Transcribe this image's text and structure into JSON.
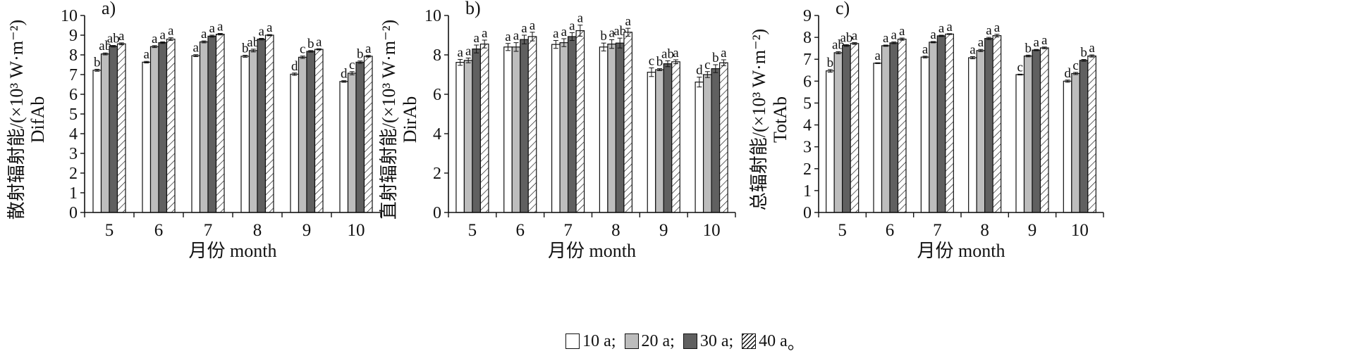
{
  "legend": {
    "items": [
      {
        "label": "10 a",
        "sep": ";",
        "pattern": "white"
      },
      {
        "label": "20 a",
        "sep": ";",
        "pattern": "lightgray"
      },
      {
        "label": "30 a",
        "sep": ";",
        "pattern": "darkgray"
      },
      {
        "label": "40 a",
        "sep": "。",
        "pattern": "hatch"
      }
    ]
  },
  "colors": {
    "white": "#ffffff",
    "lightgray": "#bdbdbd",
    "darkgray": "#606060",
    "hatch": "#ffffff",
    "ink": "#111111"
  },
  "chart_data": [
    {
      "type": "bar",
      "panel_label": "a)",
      "ylabel_lines": [
        "散射辐射能/(×10³ W·m⁻²)",
        "DifAb"
      ],
      "xlabel": "月份 month",
      "categories": [
        "5",
        "6",
        "7",
        "8",
        "9",
        "10"
      ],
      "ylim": [
        0,
        10
      ],
      "yticks": [
        0,
        1,
        2,
        3,
        4,
        5,
        6,
        7,
        8,
        9,
        10
      ],
      "series": [
        {
          "name": "10 a",
          "values": [
            7.22,
            7.63,
            7.96,
            7.93,
            7.02,
            6.65
          ],
          "errors": [
            0.05,
            0.04,
            0.05,
            0.05,
            0.06,
            0.04
          ],
          "letters": [
            "b",
            "a",
            "a",
            "b",
            "d",
            "d"
          ]
        },
        {
          "name": "20 a",
          "values": [
            8.05,
            8.42,
            8.66,
            8.22,
            7.88,
            7.07
          ],
          "errors": [
            0.05,
            0.05,
            0.05,
            0.07,
            0.06,
            0.08
          ],
          "letters": [
            "ab",
            "a",
            "a",
            "ab",
            "c",
            "c"
          ]
        },
        {
          "name": "30 a",
          "values": [
            8.44,
            8.62,
            8.95,
            8.8,
            8.18,
            7.63
          ],
          "errors": [
            0.04,
            0.04,
            0.05,
            0.04,
            0.04,
            0.06
          ],
          "letters": [
            "ab",
            "a",
            "a",
            "a",
            "b",
            "b"
          ]
        },
        {
          "name": "40 a",
          "values": [
            8.56,
            8.8,
            9.05,
            9.0,
            8.28,
            7.93
          ],
          "errors": [
            0.05,
            0.07,
            0.04,
            0.03,
            0.03,
            0.04
          ],
          "letters": [
            "a",
            "a",
            "a",
            "a",
            "a",
            "a"
          ]
        }
      ]
    },
    {
      "type": "bar",
      "panel_label": "b)",
      "ylabel_lines": [
        "直射辐射能/(×10³ W·m⁻²)",
        "DirAb"
      ],
      "xlabel": "月份 month",
      "categories": [
        "5",
        "6",
        "7",
        "8",
        "9",
        "10"
      ],
      "ylim": [
        0,
        10
      ],
      "yticks": [
        0,
        2,
        4,
        6,
        8,
        10
      ],
      "series": [
        {
          "name": "10 a",
          "values": [
            7.62,
            8.4,
            8.53,
            8.4,
            7.12,
            6.62
          ],
          "errors": [
            0.15,
            0.18,
            0.2,
            0.2,
            0.22,
            0.25
          ],
          "letters": [
            "a",
            "a",
            "a",
            "b",
            "c",
            "d"
          ]
        },
        {
          "name": "20 a",
          "values": [
            7.72,
            8.4,
            8.62,
            8.55,
            7.25,
            7.0
          ],
          "errors": [
            0.12,
            0.22,
            0.2,
            0.22,
            0.05,
            0.15
          ],
          "letters": [
            "a",
            "a",
            "a",
            "a",
            "b",
            "c"
          ]
        },
        {
          "name": "30 a",
          "values": [
            8.3,
            8.78,
            8.93,
            8.6,
            7.55,
            7.3
          ],
          "errors": [
            0.2,
            0.22,
            0.2,
            0.25,
            0.15,
            0.2
          ],
          "letters": [
            "a",
            "a",
            "a",
            "ab",
            "ab",
            "b"
          ]
        },
        {
          "name": "40 a",
          "values": [
            8.55,
            8.93,
            9.23,
            9.15,
            7.65,
            7.6
          ],
          "errors": [
            0.2,
            0.22,
            0.28,
            0.2,
            0.1,
            0.15
          ],
          "letters": [
            "a",
            "a",
            "a",
            "a",
            "a",
            "a"
          ]
        }
      ]
    },
    {
      "type": "bar",
      "panel_label": "c)",
      "ylabel_lines": [
        "总辐射能/(×10³ W·m⁻²)",
        "TotAb"
      ],
      "xlabel": "月份 month",
      "categories": [
        "5",
        "6",
        "7",
        "8",
        "9",
        "10"
      ],
      "ylim": [
        0,
        9
      ],
      "yticks": [
        0,
        1,
        2,
        3,
        4,
        5,
        6,
        7,
        8,
        9
      ],
      "series": [
        {
          "name": "10 a",
          "values": [
            6.47,
            6.82,
            7.1,
            7.07,
            6.3,
            6.0
          ],
          "errors": [
            0.06,
            0.02,
            0.04,
            0.05,
            0.02,
            0.05
          ],
          "letters": [
            "b",
            "a",
            "a",
            "a",
            "c",
            "d"
          ]
        },
        {
          "name": "20 a",
          "values": [
            7.3,
            7.62,
            7.78,
            7.4,
            7.15,
            6.35
          ],
          "errors": [
            0.05,
            0.03,
            0.03,
            0.05,
            0.04,
            0.05
          ],
          "letters": [
            "ab",
            "a",
            "a",
            "a",
            "b",
            "c"
          ]
        },
        {
          "name": "30 a",
          "values": [
            7.63,
            7.75,
            8.07,
            7.95,
            7.42,
            6.95
          ],
          "errors": [
            0.04,
            0.04,
            0.03,
            0.05,
            0.03,
            0.04
          ],
          "letters": [
            "ab",
            "a",
            "a",
            "a",
            "a",
            "b"
          ]
        },
        {
          "name": "40 a",
          "values": [
            7.72,
            7.92,
            8.15,
            8.08,
            7.52,
            7.15
          ],
          "errors": [
            0.04,
            0.05,
            0.02,
            0.06,
            0.04,
            0.05
          ],
          "letters": [
            "a",
            "a",
            "a",
            "a",
            "a",
            "a"
          ]
        }
      ]
    }
  ]
}
